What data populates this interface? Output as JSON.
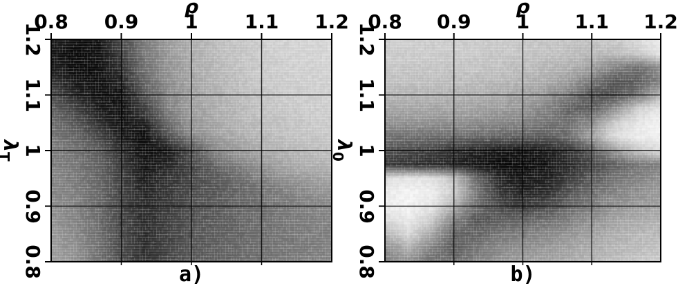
{
  "figure": {
    "background_color": "#ffffff",
    "foreground_color": "#000000",
    "colormap": "grayscale, dark = low value"
  },
  "chart_data": [
    {
      "type": "heatmap",
      "panel_label": "a)",
      "xlabel": "ρ",
      "ylabel": "λ",
      "ylabel_subscript": "T",
      "x_range": [
        0.8,
        1.2
      ],
      "y_range": [
        0.8,
        1.2
      ],
      "x_tick_labels": [
        "0.8",
        "0.9",
        "1",
        "1.1",
        "1.2"
      ],
      "y_tick_labels": [
        "1.2",
        "1.1",
        "1",
        "0.9",
        "0.8"
      ],
      "grid": true,
      "value_note": "grayscale luminance 0=black 1=white, rows ordered lambda_T descending",
      "rho_values": [
        0.8,
        0.833,
        0.867,
        0.9,
        0.933,
        0.967,
        1.0,
        1.033,
        1.067,
        1.1,
        1.133,
        1.167,
        1.2
      ],
      "lambda_values": [
        1.2,
        1.167,
        1.133,
        1.1,
        1.067,
        1.033,
        1.0,
        0.967,
        0.933,
        0.9,
        0.867,
        0.833,
        0.8
      ],
      "values_grayscale": [
        [
          0.12,
          0.04,
          0.06,
          0.28,
          0.48,
          0.6,
          0.68,
          0.73,
          0.77,
          0.8,
          0.82,
          0.83,
          0.84
        ],
        [
          0.08,
          0.03,
          0.05,
          0.22,
          0.45,
          0.58,
          0.66,
          0.72,
          0.76,
          0.79,
          0.81,
          0.82,
          0.83
        ],
        [
          0.15,
          0.05,
          0.04,
          0.15,
          0.4,
          0.55,
          0.64,
          0.7,
          0.74,
          0.78,
          0.8,
          0.81,
          0.82
        ],
        [
          0.3,
          0.15,
          0.06,
          0.07,
          0.32,
          0.52,
          0.62,
          0.68,
          0.73,
          0.76,
          0.79,
          0.8,
          0.81
        ],
        [
          0.4,
          0.28,
          0.12,
          0.05,
          0.2,
          0.47,
          0.6,
          0.66,
          0.71,
          0.75,
          0.77,
          0.79,
          0.8
        ],
        [
          0.45,
          0.38,
          0.25,
          0.08,
          0.05,
          0.35,
          0.55,
          0.63,
          0.68,
          0.72,
          0.75,
          0.77,
          0.78
        ],
        [
          0.48,
          0.44,
          0.35,
          0.18,
          0.05,
          0.08,
          0.3,
          0.52,
          0.6,
          0.66,
          0.7,
          0.73,
          0.75
        ],
        [
          0.5,
          0.46,
          0.38,
          0.22,
          0.08,
          0.15,
          0.25,
          0.35,
          0.45,
          0.55,
          0.62,
          0.66,
          0.68
        ],
        [
          0.52,
          0.48,
          0.4,
          0.25,
          0.12,
          0.2,
          0.28,
          0.33,
          0.38,
          0.44,
          0.5,
          0.55,
          0.58
        ],
        [
          0.55,
          0.5,
          0.4,
          0.26,
          0.15,
          0.22,
          0.3,
          0.34,
          0.38,
          0.42,
          0.46,
          0.5,
          0.52
        ],
        [
          0.58,
          0.52,
          0.42,
          0.27,
          0.16,
          0.24,
          0.31,
          0.35,
          0.38,
          0.42,
          0.45,
          0.48,
          0.5
        ],
        [
          0.6,
          0.54,
          0.43,
          0.28,
          0.17,
          0.25,
          0.32,
          0.36,
          0.39,
          0.42,
          0.45,
          0.47,
          0.49
        ],
        [
          0.62,
          0.56,
          0.44,
          0.28,
          0.18,
          0.26,
          0.33,
          0.37,
          0.4,
          0.43,
          0.46,
          0.48,
          0.5
        ]
      ]
    },
    {
      "type": "heatmap",
      "panel_label": "b)",
      "xlabel": "ρ",
      "ylabel": "λ",
      "ylabel_subscript": "0",
      "x_range": [
        0.8,
        1.2
      ],
      "y_range": [
        0.8,
        1.2
      ],
      "x_tick_labels": [
        "0.8",
        "0.9",
        "1",
        "1.1",
        "1.2"
      ],
      "y_tick_labels": [
        "1.2",
        "1.1",
        "1",
        "0.9",
        "0.8"
      ],
      "grid": true,
      "value_note": "grayscale luminance 0=black 1=white, rows ordered lambda_0 descending",
      "rho_values": [
        0.8,
        0.833,
        0.867,
        0.9,
        0.933,
        0.967,
        1.0,
        1.033,
        1.067,
        1.1,
        1.133,
        1.167,
        1.2
      ],
      "lambda_values": [
        1.2,
        1.175,
        1.15,
        1.125,
        1.1,
        1.075,
        1.05,
        1.025,
        1.0,
        0.975,
        0.95,
        0.925,
        0.9,
        0.875,
        0.85,
        0.825,
        0.8
      ],
      "values_grayscale": [
        [
          0.8,
          0.8,
          0.8,
          0.8,
          0.8,
          0.79,
          0.78,
          0.77,
          0.76,
          0.76,
          0.78,
          0.85,
          0.93
        ],
        [
          0.79,
          0.79,
          0.79,
          0.79,
          0.78,
          0.77,
          0.76,
          0.75,
          0.74,
          0.72,
          0.72,
          0.78,
          0.9
        ],
        [
          0.77,
          0.77,
          0.77,
          0.76,
          0.76,
          0.75,
          0.73,
          0.71,
          0.68,
          0.62,
          0.5,
          0.42,
          0.55
        ],
        [
          0.74,
          0.74,
          0.74,
          0.73,
          0.72,
          0.71,
          0.69,
          0.66,
          0.6,
          0.45,
          0.32,
          0.35,
          0.5
        ],
        [
          0.7,
          0.7,
          0.7,
          0.69,
          0.68,
          0.66,
          0.63,
          0.58,
          0.48,
          0.32,
          0.3,
          0.45,
          0.7
        ],
        [
          0.64,
          0.64,
          0.64,
          0.63,
          0.62,
          0.6,
          0.57,
          0.5,
          0.38,
          0.35,
          0.55,
          0.8,
          0.9
        ],
        [
          0.56,
          0.56,
          0.56,
          0.55,
          0.54,
          0.52,
          0.5,
          0.45,
          0.42,
          0.55,
          0.8,
          0.9,
          0.94
        ],
        [
          0.44,
          0.43,
          0.42,
          0.41,
          0.4,
          0.38,
          0.36,
          0.34,
          0.42,
          0.62,
          0.85,
          0.92,
          0.94
        ],
        [
          0.3,
          0.28,
          0.24,
          0.18,
          0.12,
          0.08,
          0.06,
          0.1,
          0.18,
          0.35,
          0.6,
          0.78,
          0.86
        ],
        [
          0.22,
          0.18,
          0.15,
          0.12,
          0.06,
          0.03,
          0.03,
          0.06,
          0.14,
          0.26,
          0.36,
          0.44,
          0.5
        ],
        [
          0.85,
          0.9,
          0.88,
          0.75,
          0.4,
          0.12,
          0.08,
          0.1,
          0.22,
          0.34,
          0.44,
          0.5,
          0.55
        ],
        [
          0.92,
          0.95,
          0.93,
          0.8,
          0.45,
          0.2,
          0.12,
          0.16,
          0.3,
          0.42,
          0.5,
          0.55,
          0.58
        ],
        [
          0.93,
          0.95,
          0.9,
          0.7,
          0.4,
          0.28,
          0.22,
          0.28,
          0.38,
          0.48,
          0.56,
          0.6,
          0.62
        ],
        [
          0.85,
          0.92,
          0.8,
          0.5,
          0.32,
          0.35,
          0.38,
          0.42,
          0.48,
          0.55,
          0.62,
          0.66,
          0.68
        ],
        [
          0.7,
          0.85,
          0.65,
          0.38,
          0.38,
          0.45,
          0.48,
          0.52,
          0.57,
          0.62,
          0.67,
          0.7,
          0.72
        ],
        [
          0.55,
          0.68,
          0.5,
          0.35,
          0.45,
          0.52,
          0.55,
          0.58,
          0.62,
          0.66,
          0.7,
          0.73,
          0.75
        ],
        [
          0.48,
          0.55,
          0.42,
          0.4,
          0.5,
          0.56,
          0.6,
          0.63,
          0.66,
          0.7,
          0.73,
          0.76,
          0.78
        ]
      ]
    }
  ]
}
